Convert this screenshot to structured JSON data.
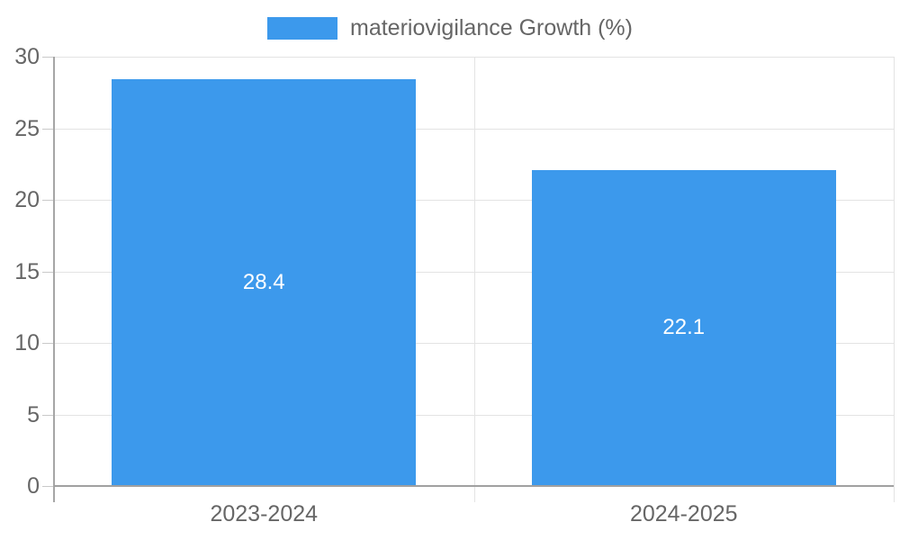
{
  "chart_data": {
    "type": "bar",
    "title": "",
    "xlabel": "",
    "ylabel": "",
    "categories": [
      "2023-2024",
      "2024-2025"
    ],
    "series": [
      {
        "name": "materiovigilance Growth (%)",
        "values": [
          28.4,
          22.1
        ]
      }
    ],
    "ylim": [
      0,
      30
    ],
    "yticks": [
      0,
      5,
      10,
      15,
      20,
      25,
      30
    ],
    "grid": true,
    "legend_position": "top",
    "bar_color": "#3c99ec",
    "value_label_color": "#ffffff",
    "axis_text_color": "#666666",
    "gridline_color": "#e3e3e3",
    "axis_line_color": "#a0a0a0"
  }
}
